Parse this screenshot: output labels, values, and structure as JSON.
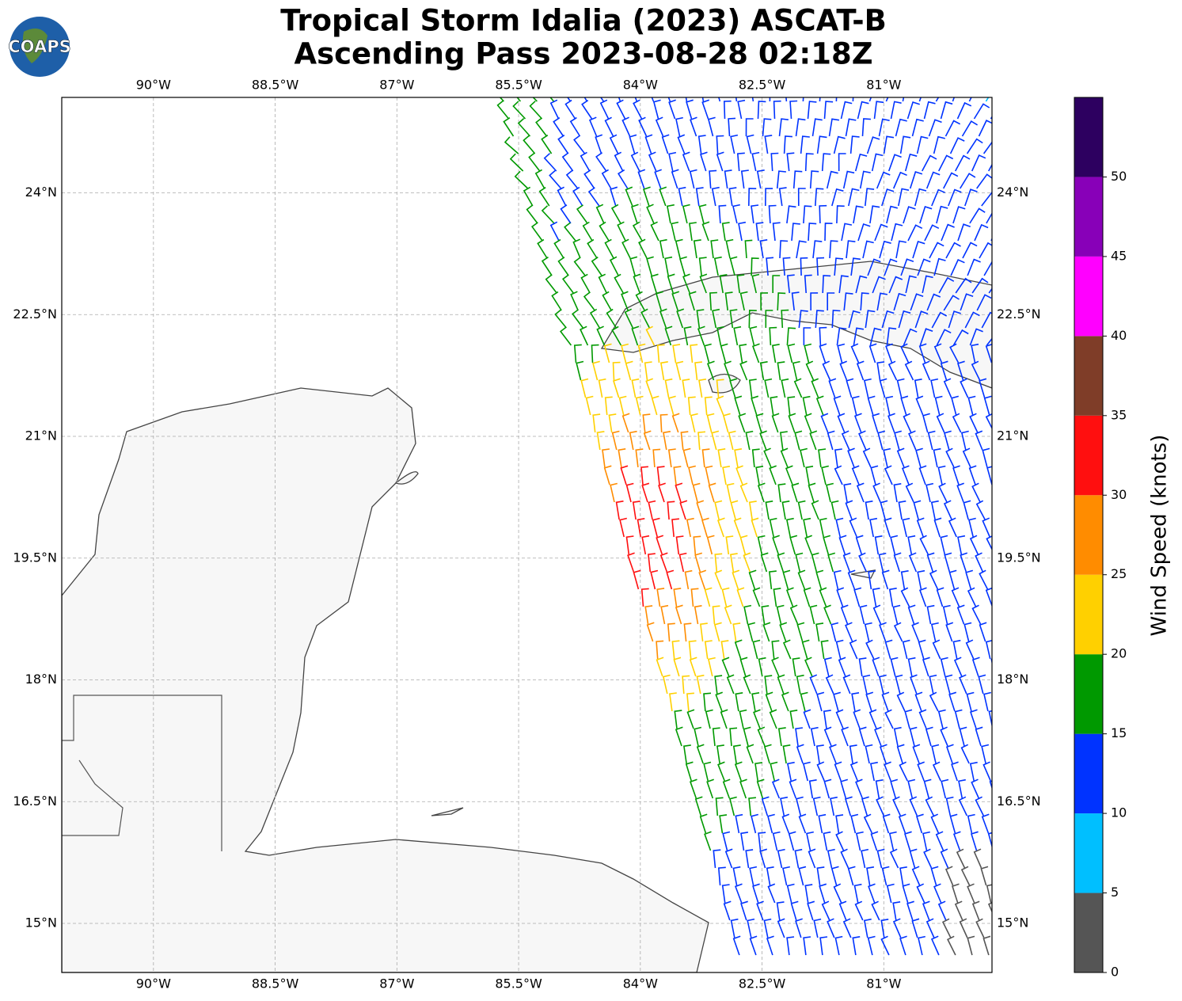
{
  "header": {
    "title_lines": [
      "Tropical Storm Idalia (2023) ASCAT-B",
      "Ascending Pass 2023-08-28 02:18Z"
    ],
    "logo": "COAPS"
  },
  "map": {
    "lon_ticks": [
      {
        "value": -90,
        "label": "90°W"
      },
      {
        "value": -88.5,
        "label": "88.5°W"
      },
      {
        "value": -87,
        "label": "87°W"
      },
      {
        "value": -85.5,
        "label": "85.5°W"
      },
      {
        "value": -84,
        "label": "84°W"
      },
      {
        "value": -82.5,
        "label": "82.5°W"
      },
      {
        "value": -81,
        "label": "81°W"
      }
    ],
    "lat_ticks": [
      {
        "value": 24,
        "label": "24°N"
      },
      {
        "value": 22.5,
        "label": "22.5°N"
      },
      {
        "value": 21,
        "label": "21°N"
      },
      {
        "value": 19.5,
        "label": "19.5°N"
      },
      {
        "value": 18,
        "label": "18°N"
      },
      {
        "value": 16.5,
        "label": "16.5°N"
      },
      {
        "value": 15,
        "label": "15°N"
      }
    ],
    "grid": true,
    "colorbar": {
      "label": "Wind Speed (knots)",
      "lim": [
        0,
        55
      ],
      "ticks": [
        0,
        5,
        10,
        15,
        20,
        25,
        30,
        35,
        40,
        45,
        50
      ],
      "colors": [
        "#555555",
        "#00bfff",
        "#0033ff",
        "#009900",
        "#ffd000",
        "#ff8c00",
        "#ff0f0f",
        "#7f3d28",
        "#ff00ff",
        "#8800b8",
        "#2d0060"
      ]
    }
  }
}
